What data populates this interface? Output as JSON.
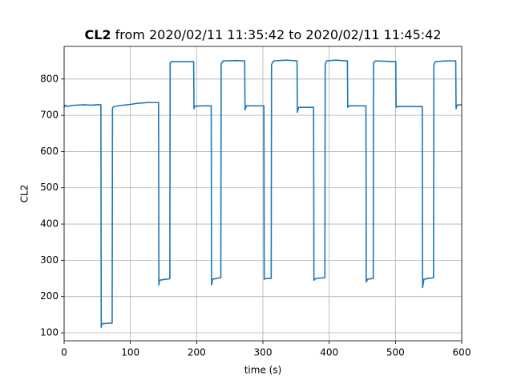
{
  "chart_data": {
    "type": "line",
    "title": {
      "bold": "CL2",
      "text": "from 2020/02/11 11:35:42 to 2020/02/11 11:45:42"
    },
    "xlabel": "time (s)",
    "ylabel": "CL2",
    "x": [
      0,
      2,
      5,
      10,
      20,
      30,
      40,
      50,
      55.5,
      56,
      57,
      65,
      72.5,
      73,
      75,
      85,
      100,
      110,
      125,
      142.5,
      143,
      144,
      150,
      159.5,
      160,
      162,
      180,
      195.5,
      196,
      197,
      210,
      222,
      222.5,
      224,
      230,
      236.5,
      237,
      240,
      260,
      272.5,
      273,
      275,
      290,
      301.5,
      302,
      305,
      312.5,
      313,
      316,
      335,
      351.5,
      352,
      354,
      365,
      376.5,
      377,
      380,
      393.5,
      394,
      396,
      410,
      427.5,
      428,
      430,
      445,
      455.5,
      456,
      458,
      466.5,
      467,
      470,
      485,
      500.5,
      501,
      503,
      520,
      540.5,
      541,
      543,
      550,
      557.5,
      558,
      560,
      575,
      591,
      591.5,
      593,
      600
    ],
    "series": [
      {
        "name": "CL2",
        "color": "#1f77b4",
        "values": [
          722,
          728,
          724,
          727,
          728,
          729,
          728,
          729,
          729,
          115,
          125,
          126,
          127,
          720,
          724,
          727,
          730,
          733,
          735,
          735,
          232,
          245,
          247,
          249,
          845,
          848,
          848,
          848,
          718,
          725,
          726,
          726,
          232,
          248,
          250,
          252,
          842,
          850,
          851,
          850,
          715,
          726,
          726,
          726,
          248,
          250,
          250,
          840,
          850,
          852,
          850,
          708,
          722,
          722,
          722,
          245,
          250,
          252,
          840,
          850,
          852,
          850,
          722,
          726,
          726,
          726,
          240,
          248,
          250,
          845,
          850,
          849,
          848,
          722,
          724,
          724,
          724,
          225,
          248,
          250,
          252,
          838,
          848,
          850,
          850,
          718,
          728,
          729
        ]
      }
    ],
    "xlim": [
      0,
      600
    ],
    "ylim": [
      78,
      890
    ],
    "xticks": [
      0,
      100,
      200,
      300,
      400,
      500,
      600
    ],
    "yticks": [
      100,
      200,
      300,
      400,
      500,
      600,
      700,
      800
    ],
    "grid": true
  }
}
